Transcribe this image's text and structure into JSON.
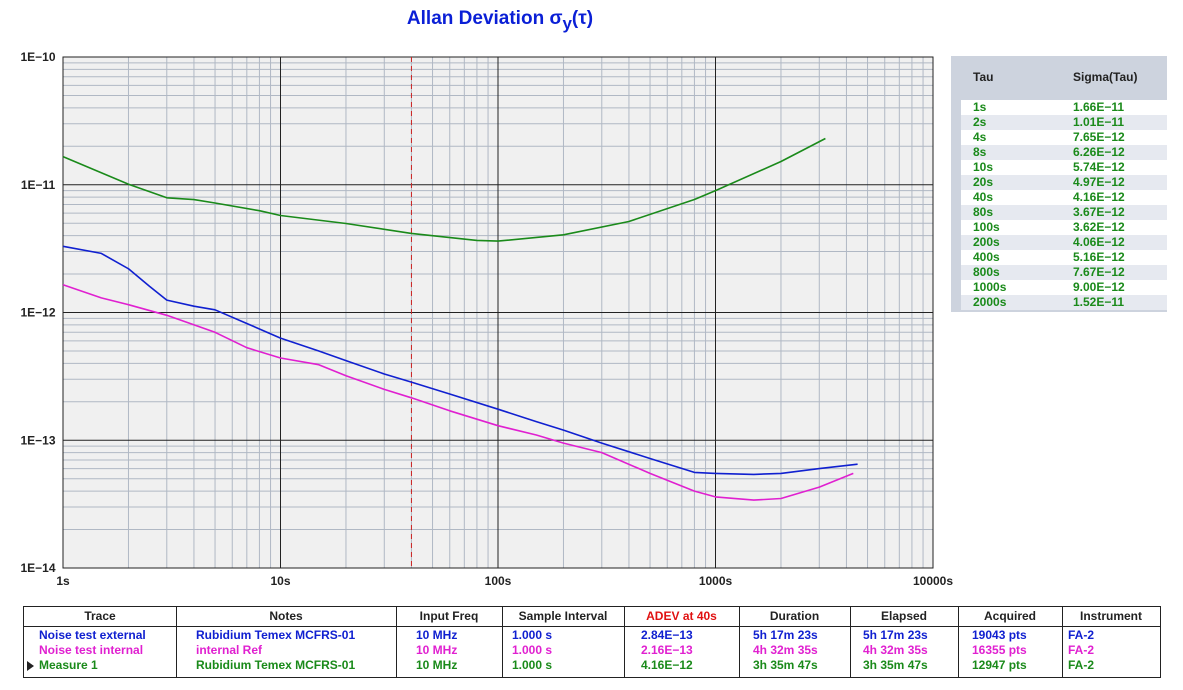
{
  "chart_data": {
    "type": "line",
    "title": "Allan Deviation",
    "title_symbol": "σ",
    "title_sub": "y",
    "title_paren": "(τ)",
    "x_scale": "log",
    "y_scale": "log",
    "xlim": [
      1,
      10000
    ],
    "ylim": [
      1e-14,
      1e-10
    ],
    "x_ticks": [
      {
        "value": 1,
        "label": "1s"
      },
      {
        "value": 10,
        "label": "10s"
      },
      {
        "value": 100,
        "label": "100s"
      },
      {
        "value": 1000,
        "label": "1000s"
      },
      {
        "value": 10000,
        "label": "10000s"
      }
    ],
    "y_ticks": [
      {
        "value": 1e-10,
        "label": "1E−10"
      },
      {
        "value": 1e-11,
        "label": "1E−11"
      },
      {
        "value": 1e-12,
        "label": "1E−12"
      },
      {
        "value": 1e-13,
        "label": "1E−13"
      },
      {
        "value": 1e-14,
        "label": "1E−14"
      }
    ],
    "grid": true,
    "marker_tau": 40,
    "marker_color": "#cc2222",
    "series": [
      {
        "name": "Noise test external",
        "color": "#1020d0",
        "x": [
          1,
          1.5,
          2,
          2.5,
          3,
          4,
          5,
          7,
          10,
          15,
          20,
          30,
          40,
          60,
          100,
          150,
          200,
          300,
          500,
          800,
          1000,
          1500,
          2000,
          3000,
          4500
        ],
        "y": [
          3.3e-12,
          2.9e-12,
          2.2e-12,
          1.6e-12,
          1.25e-12,
          1.12e-12,
          1.05e-12,
          8.2e-13,
          6.3e-13,
          5e-13,
          4.2e-13,
          3.3e-13,
          2.85e-13,
          2.3e-13,
          1.75e-13,
          1.4e-13,
          1.2e-13,
          9.5e-14,
          7.2e-14,
          5.6e-14,
          5.5e-14,
          5.4e-14,
          5.5e-14,
          6e-14,
          6.5e-14
        ]
      },
      {
        "name": "Noise test internal",
        "color": "#e020d0",
        "x": [
          1,
          1.5,
          2,
          3,
          5,
          7,
          10,
          15,
          20,
          30,
          40,
          60,
          100,
          150,
          200,
          300,
          500,
          800,
          1000,
          1500,
          2000,
          3000,
          4300
        ],
        "y": [
          1.65e-12,
          1.3e-12,
          1.15e-12,
          9.5e-13,
          7e-13,
          5.3e-13,
          4.4e-13,
          3.9e-13,
          3.2e-13,
          2.5e-13,
          2.15e-13,
          1.7e-13,
          1.3e-13,
          1.1e-13,
          9.5e-14,
          8e-14,
          5.5e-14,
          4e-14,
          3.6e-14,
          3.4e-14,
          3.5e-14,
          4.3e-14,
          5.5e-14
        ]
      },
      {
        "name": "Measure 1",
        "color": "#1a8a1a",
        "x": [
          1,
          2,
          3,
          4,
          5,
          8,
          10,
          20,
          40,
          80,
          100,
          200,
          400,
          800,
          1000,
          2000,
          3200
        ],
        "y": [
          1.66e-11,
          1.01e-11,
          7.9e-12,
          7.65e-12,
          7.2e-12,
          6.26e-12,
          5.74e-12,
          4.97e-12,
          4.16e-12,
          3.67e-12,
          3.62e-12,
          4.06e-12,
          5.16e-12,
          7.67e-12,
          9e-12,
          1.52e-11,
          2.3e-11
        ]
      }
    ]
  },
  "side_table": {
    "headers": {
      "tau": "Tau",
      "sigma": "Sigma(Tau)"
    },
    "rows": [
      {
        "tau": "1s",
        "sigma": "1.66E−11"
      },
      {
        "tau": "2s",
        "sigma": "1.01E−11"
      },
      {
        "tau": "4s",
        "sigma": "7.65E−12"
      },
      {
        "tau": "8s",
        "sigma": "6.26E−12"
      },
      {
        "tau": "10s",
        "sigma": "5.74E−12"
      },
      {
        "tau": "20s",
        "sigma": "4.97E−12"
      },
      {
        "tau": "40s",
        "sigma": "4.16E−12"
      },
      {
        "tau": "80s",
        "sigma": "3.67E−12"
      },
      {
        "tau": "100s",
        "sigma": "3.62E−12"
      },
      {
        "tau": "200s",
        "sigma": "4.06E−12"
      },
      {
        "tau": "400s",
        "sigma": "5.16E−12"
      },
      {
        "tau": "800s",
        "sigma": "7.67E−12"
      },
      {
        "tau": "1000s",
        "sigma": "9.00E−12"
      },
      {
        "tau": "2000s",
        "sigma": "1.52E−11"
      }
    ]
  },
  "bottom_table": {
    "headers": [
      "Trace",
      "Notes",
      "Input Freq",
      "Sample Interval",
      "ADEV at 40s",
      "Duration",
      "Elapsed",
      "Acquired",
      "Instrument"
    ],
    "adev_header_color": "#e01010",
    "rows": [
      {
        "color": "#1020d0",
        "selected": false,
        "cells": [
          "Noise test external",
          "Rubidium Temex MCFRS-01",
          "10 MHz",
          "1.000 s",
          "2.84E−13",
          "5h 17m 23s",
          "5h 17m 23s",
          "19043 pts",
          "FA-2"
        ]
      },
      {
        "color": "#e020d0",
        "selected": false,
        "cells": [
          "Noise test internal",
          "internal Ref",
          "10 MHz",
          "1.000 s",
          "2.16E−13",
          "4h 32m 35s",
          "4h 32m 35s",
          "16355 pts",
          "FA-2"
        ]
      },
      {
        "color": "#1a8a1a",
        "selected": true,
        "cells": [
          "Measure 1",
          "Rubidium Temex MCFRS-01",
          "10 MHz",
          "1.000 s",
          "4.16E−12",
          "3h 35m 47s",
          "3h 35m 47s",
          "12947 pts",
          "FA-2"
        ]
      }
    ]
  }
}
